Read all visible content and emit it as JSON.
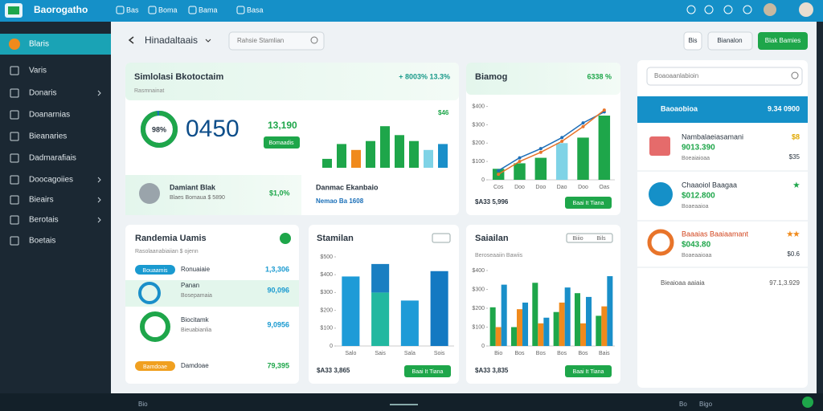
{
  "topbar": {
    "brand": "Baorogatho",
    "nav": [
      "Bas",
      "Boma",
      "Bama",
      "Basa"
    ]
  },
  "sidebar": {
    "items": [
      {
        "label": "Blaris",
        "active": true,
        "chevron": false
      },
      {
        "label": "Varis",
        "active": false,
        "chevron": false
      },
      {
        "label": "Donaris",
        "active": false,
        "chevron": true
      },
      {
        "label": "Doanarnias",
        "active": false,
        "chevron": false
      },
      {
        "label": "Bieanaries",
        "active": false,
        "chevron": false
      },
      {
        "label": "Dadmarafiais",
        "active": false,
        "chevron": false
      },
      {
        "label": "Doocagoiies",
        "active": false,
        "chevron": true
      },
      {
        "label": "Bieairs",
        "active": false,
        "chevron": true
      },
      {
        "label": "Berotais",
        "active": false,
        "chevron": true
      },
      {
        "label": "Boetais",
        "active": false,
        "chevron": false
      }
    ]
  },
  "header": {
    "title": "Hinadaltaais",
    "search": "Rahsie Stamlian",
    "button1": "Bis",
    "button2": "Bianalon",
    "button3": "Blak Bamies"
  },
  "overview": {
    "title": "Simlolasi Bkotoctaim",
    "change": "+ 8003% 13.3%",
    "subtitle": "Rasmnainat",
    "donut": {
      "value": 98,
      "label": "98%",
      "color": "#1ea64a"
    },
    "big": "0450",
    "metric": "13,190",
    "pill": "Bomaadis",
    "bars": {
      "type": "bar",
      "label": "$46",
      "ylim": [
        0,
        100
      ],
      "values": [
        15,
        40,
        30,
        45,
        70,
        55,
        45,
        30,
        40
      ],
      "colors": [
        "#1ea64a",
        "#1ea64a",
        "#f08a1c",
        "#1ea64a",
        "#1ea64a",
        "#1ea64a",
        "#1ea64a",
        "#7fd3e6",
        "#1a8fc9"
      ]
    },
    "person": {
      "name": "Damiant Blak",
      "detail": "Blaes Bomaua $ 5890",
      "value": "$1,0%"
    },
    "note": {
      "title": "Danmac Ekanbaio",
      "detail": "Nemao Ba 1608"
    }
  },
  "growth": {
    "type": "bar",
    "title": "Biamog",
    "change": "6338 %",
    "categories": [
      "Cos",
      "Doo",
      "Doo",
      "Dao",
      "Doo",
      "Oas"
    ],
    "series": [
      {
        "type": "bar",
        "colors": [
          "#1ea64a",
          "#1ea64a",
          "#1ea64a",
          "#7fd3e6",
          "#1ea64a",
          "#1ea64a"
        ],
        "values": [
          60,
          90,
          120,
          200,
          230,
          350
        ]
      },
      {
        "type": "line",
        "color": "#1e6fb8",
        "values": [
          50,
          120,
          170,
          230,
          310,
          370
        ]
      },
      {
        "type": "line",
        "color": "#e8742a",
        "values": [
          30,
          100,
          150,
          210,
          290,
          380
        ]
      }
    ],
    "ylim": [
      0,
      420
    ],
    "yticks": [
      0,
      {
        "value": 100,
        "label": "$100"
      },
      {
        "value": 200,
        "label": "$200"
      },
      {
        "value": 300,
        "label": "$300"
      },
      {
        "value": 400,
        "label": "$400"
      }
    ],
    "footer": "$A33 5,996",
    "button": "Baai It Tiana"
  },
  "users": {
    "title": "Randemia Uamis",
    "subtitle": "Rasolaanabiaiian $ ojenn",
    "rows": [
      {
        "tag": "Bouaamis",
        "title": "Ronuaiaie",
        "value": "1,3,306"
      },
      {
        "title": "Panan",
        "detail": "Bosepamaia",
        "value": "90,096"
      },
      {
        "title": "Biocitamk",
        "detail": "Bieuabianlia",
        "value": "9,0956"
      },
      {
        "tag": "Bamdoae",
        "title": "Damdoae",
        "value": "79,395"
      }
    ]
  },
  "stamilan": {
    "type": "bar",
    "title": "Stamilan",
    "categories": [
      "Salo",
      "Sais",
      "Sala",
      "Sois"
    ],
    "series": [
      {
        "type": "bar",
        "colors": [
          "#1e9bd7",
          "#22b8a0",
          "#1e9bd7",
          "#1379c2"
        ],
        "values": [
          390,
          300,
          255,
          420
        ]
      },
      {
        "type": "bar",
        "colors": [
          "#1e9bd7",
          "#1a7fc2",
          "#1e9bd7",
          "#1379c2"
        ],
        "values": [
          0,
          160,
          0,
          0
        ]
      }
    ],
    "ylim": [
      0,
      500
    ],
    "yticks": [
      0,
      {
        "value": 100,
        "label": "$100"
      },
      {
        "value": 200,
        "label": "$200"
      },
      {
        "value": 300,
        "label": "$300"
      },
      {
        "value": 400,
        "label": "$400"
      },
      {
        "value": 500,
        "label": "$500"
      }
    ],
    "footer": "$A33 3,865",
    "button": "Baai It Tiana"
  },
  "saiailan": {
    "type": "bar",
    "title": "Saiailan",
    "subtitle": "Beroseaaiin Bawiis",
    "toggle": [
      "Biiio",
      "Bils"
    ],
    "categories": [
      "Bio",
      "Bos",
      "Bos",
      "Bos",
      "Bos",
      "Bais"
    ],
    "series": [
      {
        "type": "bar",
        "color": "#1ea64a",
        "values": [
          205,
          100,
          335,
          180,
          280,
          160
        ]
      },
      {
        "type": "bar",
        "color": "#f08a1c",
        "values": [
          100,
          195,
          120,
          230,
          120,
          210
        ]
      },
      {
        "type": "bar",
        "color": "#1a8fc9",
        "values": [
          325,
          230,
          150,
          310,
          260,
          370
        ]
      }
    ],
    "ylim": [
      0,
      400
    ],
    "yticks": [
      0,
      {
        "value": 100,
        "label": "$100"
      },
      {
        "value": 200,
        "label": "$200"
      },
      {
        "value": 300,
        "label": "$300"
      },
      {
        "value": 400,
        "label": "$400"
      }
    ],
    "footer": "$A33 3,835",
    "button": "Baai It Tiana"
  },
  "panel": {
    "search": "Boaoaanlabioin",
    "header": "Baoaobioa",
    "header_value": "9.34 0900",
    "items": [
      {
        "title": "Nambalaeiasamani",
        "value": "9013.390",
        "detail": "Boeaiaioaa",
        "badge": "$8",
        "side": "$35"
      },
      {
        "title": "Chaaoiol Baagaa",
        "value": "$012.800",
        "detail": "Boaeaaioa",
        "badge": "★",
        "side": ""
      },
      {
        "title": "Baaaias Baaiaamant",
        "value": "$043.80",
        "detail": "Boaeaaioaa",
        "badge": "★★",
        "side": "$0.6"
      }
    ],
    "footer": "Bieaioaa aaiaia",
    "footer_value": "97.1,3.929"
  },
  "bottombar": {
    "left": "Bio",
    "right1": "Bo",
    "right2": "Bigo"
  }
}
